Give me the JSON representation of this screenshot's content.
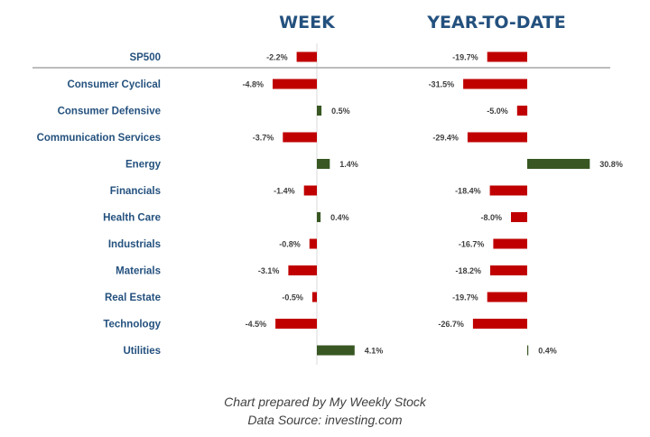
{
  "chart_data": {
    "type": "bar",
    "orientation": "horizontal",
    "categories": [
      "SP500",
      "Consumer Cyclical",
      "Consumer Defensive",
      "Communication Services",
      "Energy",
      "Financials",
      "Health Care",
      "Industrials",
      "Materials",
      "Real Estate",
      "Technology",
      "Utilities"
    ],
    "series": [
      {
        "name": "WEEK",
        "values": [
          -2.2,
          -4.8,
          0.5,
          -3.7,
          1.4,
          -1.4,
          0.4,
          -0.8,
          -3.1,
          -0.5,
          -4.5,
          4.1
        ],
        "labels": [
          "-2.2%",
          "-4.8%",
          "0.5%",
          "-3.7%",
          "1.4%",
          "-1.4%",
          "0.4%",
          "-0.8%",
          "-3.1%",
          "-0.5%",
          "-4.5%",
          "4.1%"
        ]
      },
      {
        "name": "YEAR-TO-DATE",
        "values": [
          -19.7,
          -31.5,
          -5.0,
          -29.4,
          30.8,
          -18.4,
          -8.0,
          -16.7,
          -18.2,
          -19.7,
          -26.7,
          0.4
        ],
        "labels": [
          "-19.7%",
          "-31.5%",
          "-5.0%",
          "-29.4%",
          "30.8%",
          "-18.4%",
          "-8.0%",
          "-16.7%",
          "-18.2%",
          "-19.7%",
          "-26.7%",
          "0.4%"
        ]
      }
    ],
    "colors": {
      "negative": "#c00000",
      "positive": "#385723"
    }
  },
  "footer": {
    "line1": "Chart prepared by My Weekly Stock",
    "line2": "Data Source: investing.com"
  }
}
